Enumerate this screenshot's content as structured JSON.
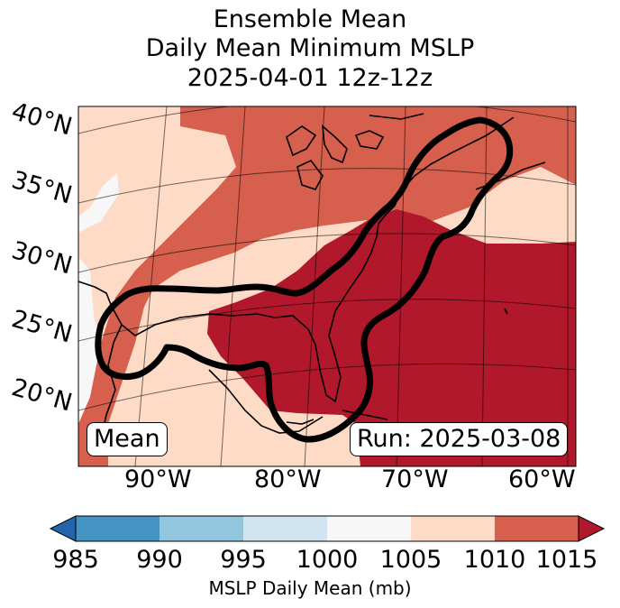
{
  "title": {
    "line1": "Ensemble Mean",
    "line2": "Daily Mean Minimum MSLP",
    "line3": "2025-04-01 12z-12z"
  },
  "map": {
    "latitude_labels": [
      "40°N",
      "35°N",
      "30°N",
      "25°N",
      "20°N"
    ],
    "longitude_labels": [
      "90°W",
      "80°W",
      "70°W",
      "60°W"
    ],
    "field_colors": {
      "below_985": "#2166ac",
      "985_990": "#4393c3",
      "990_995": "#92c5de",
      "995_1000": "#d1e5f0",
      "1000_1005": "#f7f7f7",
      "1005_1010": "#fddbc7",
      "1010_1015": "#d6604d",
      "above_1015": "#b2182b"
    },
    "mean_label": "Mean",
    "run_label": "Run: 2025-03-08",
    "contour_color": "#000000"
  },
  "colorbar": {
    "ticks": [
      "985",
      "990",
      "995",
      "1000",
      "1005",
      "1010",
      "1015"
    ],
    "bins": [
      "#4393c3",
      "#92c5de",
      "#d1e5f0",
      "#f7f7f7",
      "#fddbc7",
      "#d6604d"
    ],
    "under_color": "#2166ac",
    "over_color": "#b2182b",
    "label": "MSLP Daily Mean (mb)",
    "extend": "both"
  }
}
